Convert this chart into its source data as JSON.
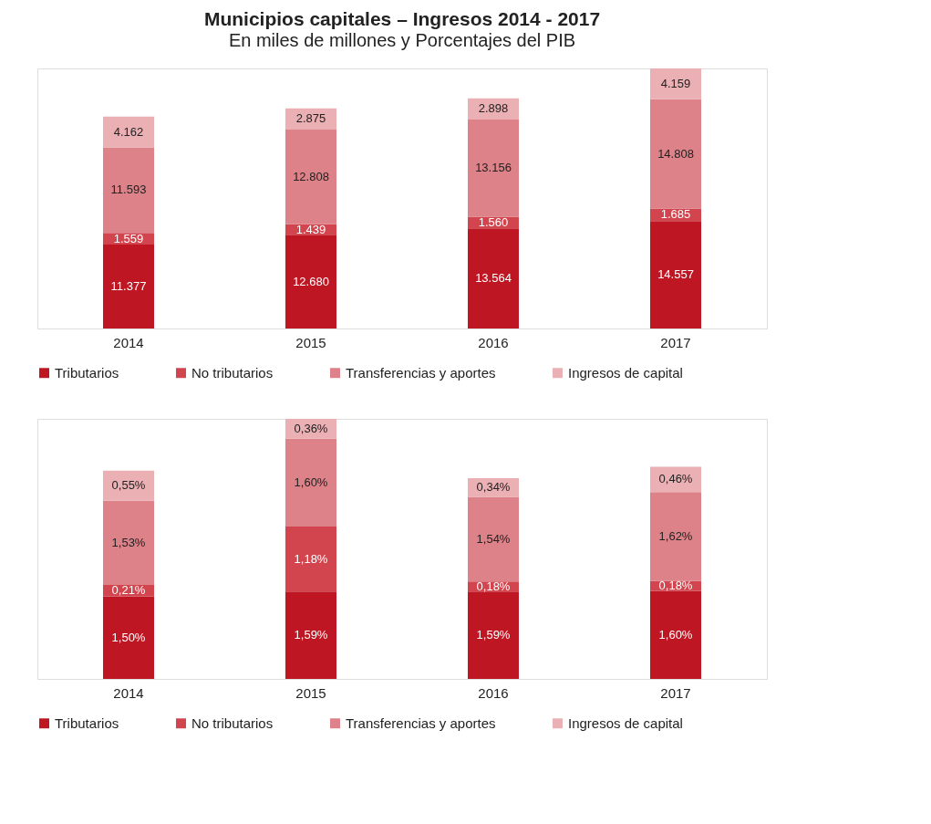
{
  "chart_data": [
    {
      "type": "bar",
      "title": "Municipios capitales – Ingresos 2014 - 2017",
      "subtitle": "En miles de millones y Porcentajes del PIB",
      "stacked": true,
      "legend": "bottom",
      "grid": false,
      "categories": [
        "2014",
        "2015",
        "2016",
        "2017"
      ],
      "series": [
        {
          "name": "Tributarios",
          "color": "#be1622",
          "values": [
            11377,
            12680,
            13564,
            14557
          ],
          "value_labels": [
            "11.377",
            "12.680",
            "13.564",
            "14.557"
          ]
        },
        {
          "name": "No tributarios",
          "color": "#d2454f",
          "values": [
            1559,
            1439,
            1560,
            1685
          ],
          "value_labels": [
            "1.559",
            "1.439",
            "1.560",
            "1.685"
          ]
        },
        {
          "name": "Transferencias y aportes",
          "color": "#dc8288",
          "values": [
            11593,
            12808,
            13156,
            14808
          ],
          "value_labels": [
            "11.593",
            "12.808",
            "13.156",
            "14.808"
          ]
        },
        {
          "name": "Ingresos de capital",
          "color": "#ebb0b4",
          "values": [
            4162,
            2875,
            2898,
            4159
          ],
          "value_labels": [
            "4.162",
            "2.875",
            "2.898",
            "4.159"
          ]
        }
      ]
    },
    {
      "type": "bar",
      "stacked": true,
      "legend": "bottom",
      "grid": false,
      "categories": [
        "2014",
        "2015",
        "2016",
        "2017"
      ],
      "series": [
        {
          "name": "Tributarios",
          "color": "#be1622",
          "values": [
            1.5,
            1.59,
            1.59,
            1.6
          ],
          "value_labels": [
            "1,50%",
            "1,59%",
            "1,59%",
            "1,60%"
          ]
        },
        {
          "name": "No tributarios",
          "color": "#d2454f",
          "values": [
            0.21,
            1.18,
            0.18,
            0.18
          ],
          "value_labels": [
            "0,21%",
            "1,18%",
            "0,18%",
            "0,18%"
          ]
        },
        {
          "name": "Transferencias y aportes",
          "color": "#dc8288",
          "values": [
            1.53,
            1.6,
            1.54,
            1.62
          ],
          "value_labels": [
            "1,53%",
            "1,60%",
            "1,54%",
            "1,62%"
          ]
        },
        {
          "name": "Ingresos de capital",
          "color": "#ebb0b4",
          "values": [
            0.55,
            0.36,
            0.34,
            0.46
          ],
          "value_labels": [
            "0,55%",
            "0,36%",
            "0,34%",
            "0,46%"
          ]
        }
      ]
    }
  ]
}
